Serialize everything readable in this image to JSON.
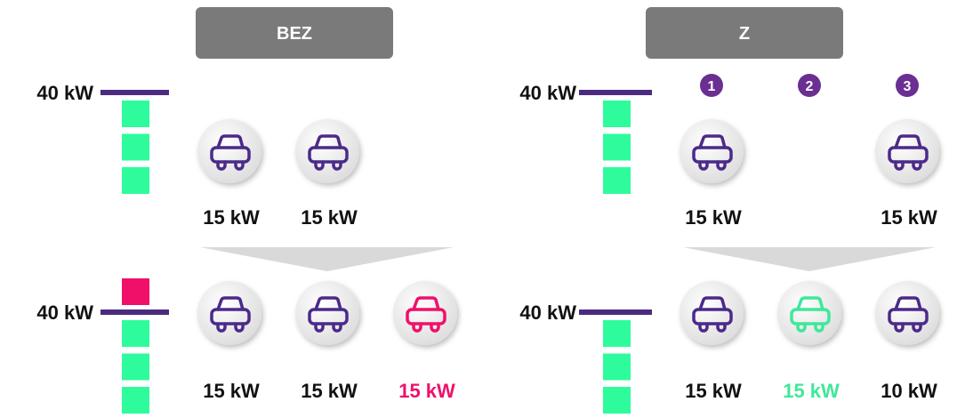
{
  "panels": [
    {
      "header": "BEZ",
      "top": {
        "limit": "40 kW",
        "cars": [
          {
            "label": "15 kW",
            "color": "#4b2a8a"
          },
          {
            "label": "15 kW",
            "color": "#4b2a8a"
          }
        ]
      },
      "bottom": {
        "limit": "40 kW",
        "cars": [
          {
            "label": "15 kW",
            "color": "#4b2a8a"
          },
          {
            "label": "15 kW",
            "color": "#4b2a8a"
          },
          {
            "label": "15 kW",
            "color": "#f0106a"
          }
        ]
      }
    },
    {
      "header": "Z",
      "badges": [
        "1",
        "2",
        "3"
      ],
      "top": {
        "limit": "40 kW",
        "cars": [
          {
            "label": "15 kW",
            "color": "#4b2a8a"
          },
          null,
          {
            "label": "15 kW",
            "color": "#4b2a8a"
          }
        ]
      },
      "bottom": {
        "limit": "40 kW",
        "cars": [
          {
            "label": "15 kW",
            "color": "#4b2a8a"
          },
          {
            "label": "15 kW",
            "color": "#3ee89a"
          },
          {
            "label": "10 kW",
            "color": "#4b2a8a"
          }
        ]
      }
    }
  ]
}
